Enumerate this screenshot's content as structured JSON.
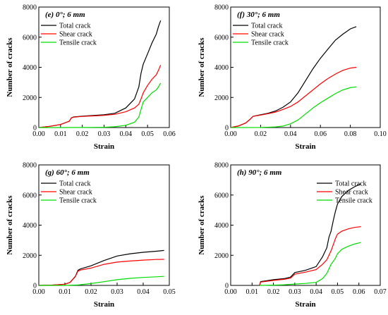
{
  "chart_data": [
    {
      "type": "line",
      "title": "(e)  0°; 6 mm",
      "xlabel": "Strain",
      "ylabel": "Number of cracks",
      "xlim": [
        0.0,
        0.06
      ],
      "ylim": [
        0,
        8000
      ],
      "xticks": [
        "0.00",
        "0.01",
        "0.02",
        "0.03",
        "0.04",
        "0.05",
        "0.06"
      ],
      "yticks": [
        "0",
        "2000",
        "4000",
        "6000",
        "8000"
      ],
      "legend_position": "top-left",
      "series": [
        {
          "name": "Total crack",
          "color": "#000000",
          "x": [
            0,
            0.005,
            0.01,
            0.014,
            0.015,
            0.016,
            0.02,
            0.025,
            0.03,
            0.035,
            0.04,
            0.044,
            0.046,
            0.047,
            0.048,
            0.05,
            0.052,
            0.054,
            0.055,
            0.056
          ],
          "y": [
            0,
            80,
            200,
            420,
            650,
            700,
            760,
            800,
            850,
            950,
            1300,
            1900,
            2700,
            3600,
            4200,
            4900,
            5600,
            6200,
            6700,
            7100
          ]
        },
        {
          "name": "Shear crack",
          "color": "#ff0000",
          "x": [
            0,
            0.005,
            0.01,
            0.014,
            0.015,
            0.016,
            0.02,
            0.025,
            0.03,
            0.035,
            0.04,
            0.044,
            0.046,
            0.047,
            0.048,
            0.05,
            0.052,
            0.054,
            0.055,
            0.056
          ],
          "y": [
            0,
            80,
            200,
            420,
            640,
            690,
            740,
            770,
            810,
            880,
            1050,
            1300,
            1550,
            1900,
            2300,
            2800,
            3200,
            3500,
            3800,
            4150
          ]
        },
        {
          "name": "Tensile crack",
          "color": "#00dd00",
          "x": [
            0,
            0.01,
            0.02,
            0.03,
            0.035,
            0.04,
            0.044,
            0.046,
            0.047,
            0.048,
            0.05,
            0.052,
            0.054,
            0.055,
            0.056
          ],
          "y": [
            0,
            0,
            5,
            20,
            50,
            150,
            350,
            700,
            1200,
            1700,
            2000,
            2300,
            2500,
            2700,
            2950
          ]
        }
      ]
    },
    {
      "type": "line",
      "title": "(f)  30°; 6 mm",
      "xlabel": "Strain",
      "ylabel": "Number of cracks",
      "xlim": [
        0.0,
        0.1
      ],
      "ylim": [
        0,
        8000
      ],
      "xticks": [
        "0.00",
        "0.02",
        "0.04",
        "0.06",
        "0.08",
        "0.10"
      ],
      "yticks": [
        "0",
        "2000",
        "4000",
        "6000",
        "8000"
      ],
      "legend_position": "top-left",
      "series": [
        {
          "name": "Total crack",
          "color": "#000000",
          "x": [
            0,
            0.005,
            0.01,
            0.013,
            0.015,
            0.02,
            0.025,
            0.03,
            0.035,
            0.04,
            0.045,
            0.05,
            0.055,
            0.06,
            0.065,
            0.07,
            0.075,
            0.08,
            0.084
          ],
          "y": [
            0,
            100,
            300,
            550,
            750,
            850,
            950,
            1100,
            1350,
            1700,
            2300,
            3100,
            3900,
            4600,
            5200,
            5800,
            6200,
            6550,
            6700
          ]
        },
        {
          "name": "Shear crack",
          "color": "#ff0000",
          "x": [
            0,
            0.005,
            0.01,
            0.013,
            0.015,
            0.02,
            0.025,
            0.03,
            0.035,
            0.04,
            0.045,
            0.05,
            0.055,
            0.06,
            0.065,
            0.07,
            0.075,
            0.08,
            0.084
          ],
          "y": [
            0,
            100,
            300,
            550,
            750,
            830,
            920,
            1030,
            1200,
            1400,
            1700,
            2100,
            2500,
            2900,
            3250,
            3550,
            3800,
            3950,
            4000
          ]
        },
        {
          "name": "Tensile crack",
          "color": "#00dd00",
          "x": [
            0,
            0.02,
            0.03,
            0.035,
            0.04,
            0.045,
            0.05,
            0.055,
            0.06,
            0.065,
            0.07,
            0.075,
            0.08,
            0.084
          ],
          "y": [
            0,
            5,
            40,
            100,
            250,
            500,
            900,
            1300,
            1650,
            1950,
            2250,
            2500,
            2650,
            2700
          ]
        }
      ]
    },
    {
      "type": "line",
      "title": "(g)  60°; 6 mm",
      "xlabel": "Strain",
      "ylabel": "Number of cracks",
      "xlim": [
        0.0,
        0.05
      ],
      "ylim": [
        0,
        8000
      ],
      "xticks": [
        "0.00",
        "0.01",
        "0.02",
        "0.03",
        "0.04",
        "0.05"
      ],
      "yticks": [
        "0",
        "2000",
        "4000",
        "6000",
        "8000"
      ],
      "legend_position": "top-left",
      "series": [
        {
          "name": "Total crack",
          "color": "#000000",
          "x": [
            0,
            0.005,
            0.01,
            0.012,
            0.014,
            0.015,
            0.016,
            0.02,
            0.025,
            0.03,
            0.035,
            0.04,
            0.045,
            0.048
          ],
          "y": [
            0,
            20,
            80,
            200,
            600,
            1000,
            1100,
            1300,
            1650,
            1950,
            2100,
            2200,
            2270,
            2320
          ]
        },
        {
          "name": "Shear crack",
          "color": "#ff0000",
          "x": [
            0,
            0.005,
            0.01,
            0.012,
            0.014,
            0.015,
            0.016,
            0.02,
            0.025,
            0.03,
            0.035,
            0.04,
            0.045,
            0.048
          ],
          "y": [
            0,
            20,
            80,
            200,
            580,
            950,
            1020,
            1150,
            1400,
            1550,
            1620,
            1680,
            1720,
            1730
          ]
        },
        {
          "name": "Tensile crack",
          "color": "#00dd00",
          "x": [
            0,
            0.01,
            0.015,
            0.02,
            0.025,
            0.03,
            0.035,
            0.04,
            0.045,
            0.048
          ],
          "y": [
            0,
            0,
            30,
            120,
            250,
            380,
            470,
            530,
            570,
            600
          ]
        }
      ]
    },
    {
      "type": "line",
      "title": "(h)  90°; 6 mm",
      "xlabel": "Strain",
      "ylabel": "Number of cracks",
      "xlim": [
        0.0,
        0.07
      ],
      "ylim": [
        0,
        8000
      ],
      "xticks": [
        "0.00",
        "0.01",
        "0.02",
        "0.03",
        "0.04",
        "0.05",
        "0.06",
        "0.07"
      ],
      "yticks": [
        "0",
        "2000",
        "4000",
        "6000",
        "8000"
      ],
      "legend_position": "top-right",
      "series": [
        {
          "name": "Total crack",
          "color": "#000000",
          "x": [
            0.0135,
            0.014,
            0.02,
            0.025,
            0.028,
            0.03,
            0.035,
            0.04,
            0.043,
            0.045,
            0.046,
            0.047,
            0.048,
            0.049,
            0.05,
            0.052,
            0.055,
            0.058,
            0.061
          ],
          "y": [
            0,
            250,
            380,
            450,
            550,
            850,
            1000,
            1250,
            1900,
            2500,
            3200,
            3600,
            4300,
            4900,
            5400,
            5900,
            6300,
            6550,
            6750
          ]
        },
        {
          "name": "Shear crack",
          "color": "#ff0000",
          "x": [
            0.0135,
            0.014,
            0.02,
            0.025,
            0.028,
            0.03,
            0.035,
            0.04,
            0.043,
            0.045,
            0.046,
            0.047,
            0.048,
            0.049,
            0.05,
            0.052,
            0.055,
            0.058,
            0.061
          ],
          "y": [
            0,
            220,
            330,
            400,
            480,
            750,
            880,
            1050,
            1400,
            1700,
            2000,
            2300,
            2700,
            3100,
            3400,
            3600,
            3750,
            3850,
            3900
          ]
        },
        {
          "name": "Tensile crack",
          "color": "#00dd00",
          "x": [
            0.0135,
            0.02,
            0.025,
            0.028,
            0.03,
            0.035,
            0.04,
            0.043,
            0.045,
            0.046,
            0.047,
            0.048,
            0.049,
            0.05,
            0.052,
            0.055,
            0.058,
            0.061
          ],
          "y": [
            0,
            20,
            40,
            70,
            90,
            130,
            200,
            450,
            800,
            1100,
            1400,
            1600,
            1800,
            2100,
            2400,
            2600,
            2750,
            2850
          ]
        }
      ]
    }
  ]
}
